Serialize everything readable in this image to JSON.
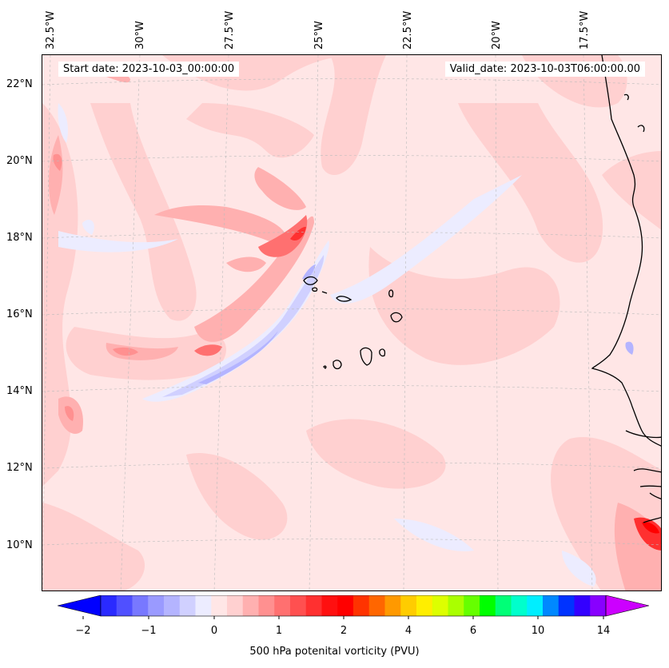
{
  "map": {
    "start_date": "Start date: 2023-10-03_00:00:00",
    "valid_date": "Valid_date: 2023-10-03T06:00:00.00",
    "lon_labels": [
      "32.5°W",
      "30°W",
      "27.5°W",
      "25°W",
      "22.5°W",
      "20°W",
      "17.5°W"
    ],
    "lat_labels": [
      "22°N",
      "20°N",
      "18°N",
      "16°N",
      "14°N",
      "12°N",
      "10°N"
    ],
    "background_color": "#ffe6e6"
  },
  "colorbar": {
    "label": "500 hPa potenital vorticity (PVU)",
    "tick_labels": [
      "−2",
      "−1",
      "0",
      "1",
      "2",
      "4",
      "6",
      "10",
      "14"
    ],
    "colors": [
      "#0000ff",
      "#2a2aff",
      "#5050ff",
      "#7878ff",
      "#9a9aff",
      "#b4b4ff",
      "#d0d0ff",
      "#ececff",
      "#ffe6e6",
      "#ffd0d0",
      "#ffb0b0",
      "#ff9090",
      "#ff7070",
      "#ff5050",
      "#ff3030",
      "#ff1010",
      "#ff0000",
      "#ff3300",
      "#ff6600",
      "#ff9900",
      "#ffcc00",
      "#ffee00",
      "#ddff00",
      "#aaff00",
      "#66ff00",
      "#00ff00",
      "#00ff77",
      "#00ffcc",
      "#00eeff",
      "#0088ff",
      "#0033ff",
      "#3300ff",
      "#8800ff",
      "#cc00ff"
    ]
  }
}
